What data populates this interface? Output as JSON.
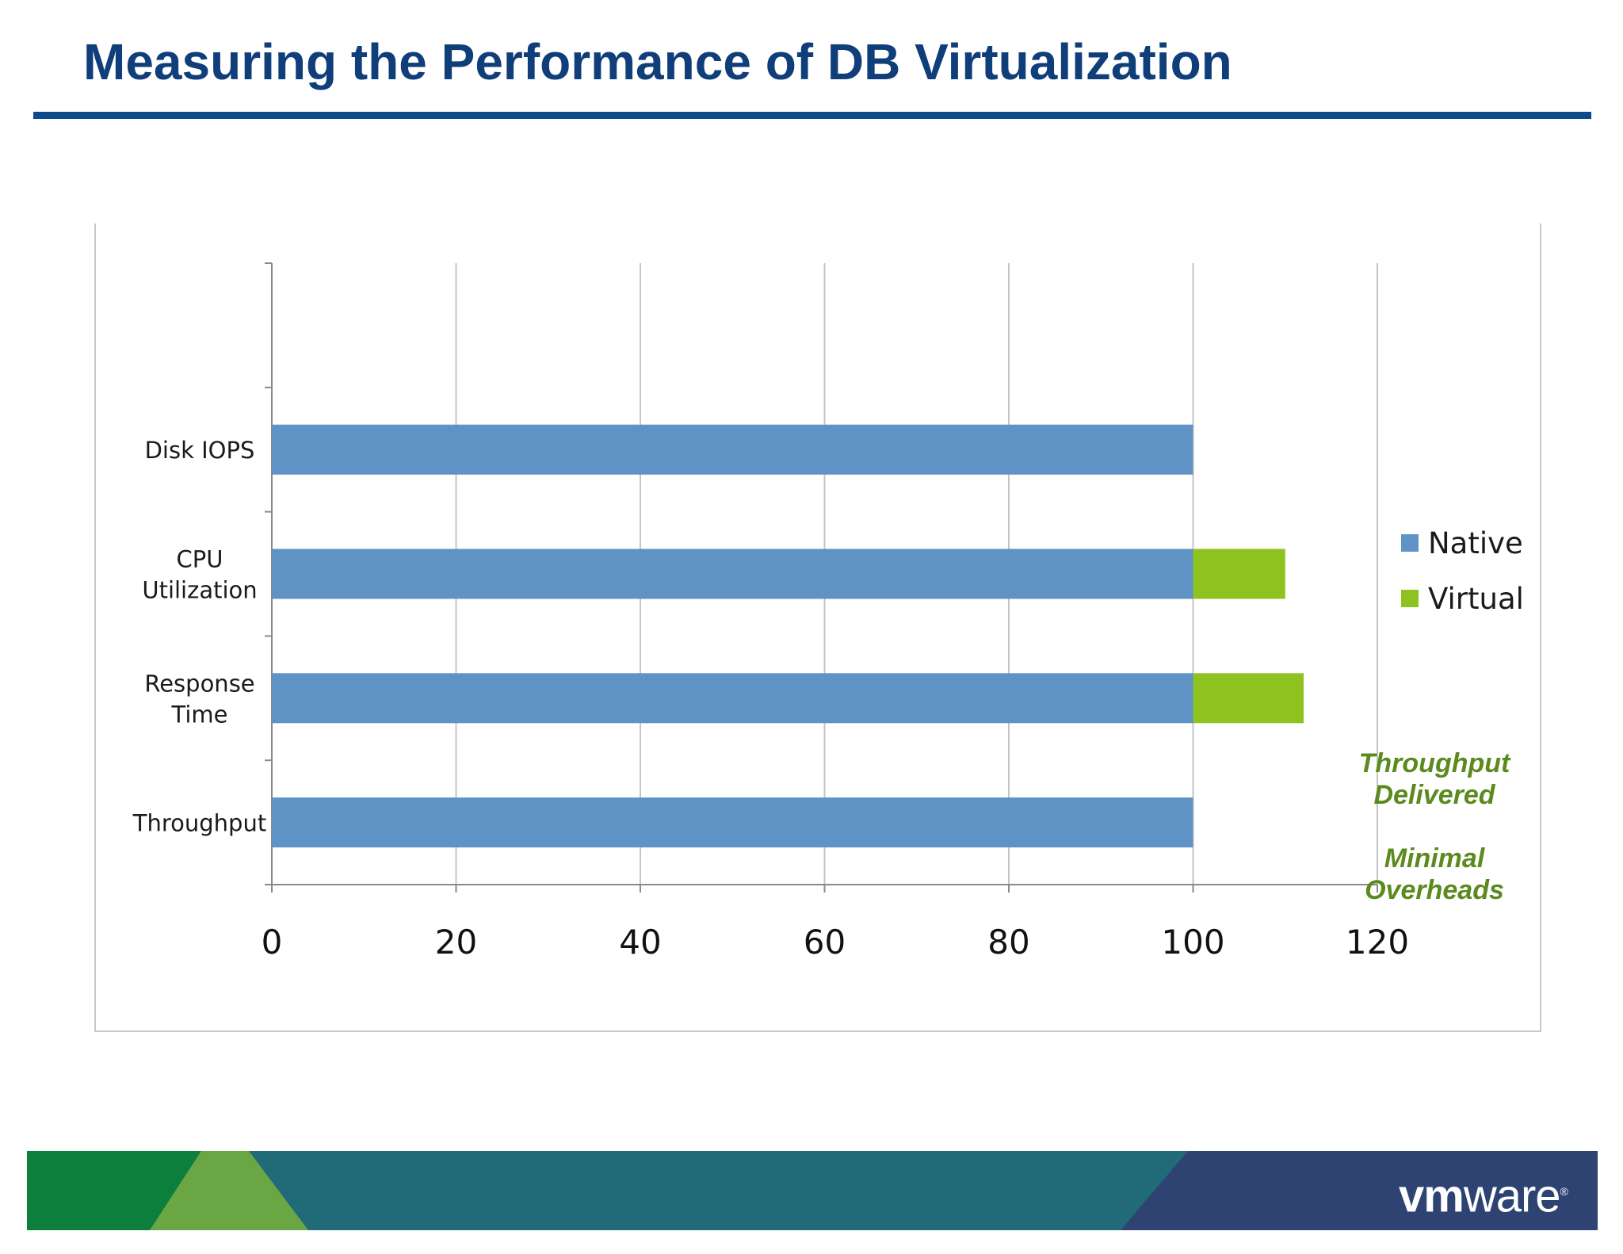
{
  "slide": {
    "title": "Measuring the Performance of DB Virtualization"
  },
  "chart_data": {
    "type": "bar",
    "orientation": "horizontal",
    "stacked": true,
    "categories": [
      "Disk IOPS",
      "CPU Utilization",
      "Response Time",
      "Throughput"
    ],
    "category_lines": [
      [
        "Disk IOPS"
      ],
      [
        "CPU",
        "Utilization"
      ],
      [
        "Response",
        "Time"
      ],
      [
        "Throughput"
      ]
    ],
    "series": [
      {
        "name": "Native",
        "color": "#5f92c5",
        "values": [
          100,
          100,
          100,
          100
        ]
      },
      {
        "name": "Virtual",
        "color": "#8dc21f",
        "values": [
          0,
          10,
          12,
          0
        ]
      }
    ],
    "xlim": [
      0,
      120
    ],
    "x_ticks": [
      "0",
      "20",
      "40",
      "60",
      "80",
      "100",
      "120"
    ],
    "grid": true,
    "legend_position": "right"
  },
  "annotations": [
    {
      "lines": [
        "Throughput",
        "Delivered"
      ]
    },
    {
      "lines": [
        "Minimal",
        "Overheads"
      ]
    }
  ],
  "footer": {
    "logo_text_bold": "vm",
    "logo_text": "ware",
    "logo_reg": "®",
    "colors": {
      "green_dark": "#0c7f3d",
      "green_light": "#6aa744",
      "teal": "#216a77",
      "navy": "#2e4372"
    }
  }
}
